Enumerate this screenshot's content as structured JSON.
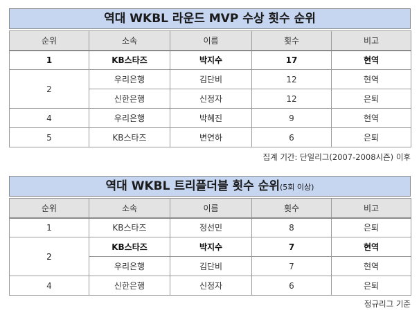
{
  "table1": {
    "title": "역대 WKBL 라운드 MVP 수상 횟수 순위",
    "headers": [
      "순위",
      "소속",
      "이름",
      "횟수",
      "비고"
    ],
    "rows": [
      {
        "rank": "1",
        "team": "KB스타즈",
        "name": "박지수",
        "count": "17",
        "note": "현역"
      },
      {
        "rank": "2",
        "team": "우리은행",
        "name": "김단비",
        "count": "12",
        "note": "현역"
      },
      {
        "rank": "",
        "team": "신한은행",
        "name": "신정자",
        "count": "12",
        "note": "은퇴"
      },
      {
        "rank": "4",
        "team": "우리은행",
        "name": "박혜진",
        "count": "9",
        "note": "현역"
      },
      {
        "rank": "5",
        "team": "KB스타즈",
        "name": "변연하",
        "count": "6",
        "note": "은퇴"
      }
    ],
    "footnote": "집계 기간: 단일리그(2007-2008시즌) 이후"
  },
  "table2": {
    "title": "역대 WKBL 트리플더블 횟수 순위",
    "title_suffix": "(5회 이상)",
    "headers": [
      "순위",
      "소속",
      "이름",
      "횟수",
      "비고"
    ],
    "rows": [
      {
        "rank": "1",
        "team": "KB스타즈",
        "name": "정선민",
        "count": "8",
        "note": "은퇴"
      },
      {
        "rank": "2",
        "team": "KB스타즈",
        "name": "박지수",
        "count": "7",
        "note": "현역"
      },
      {
        "rank": "",
        "team": "우리은행",
        "name": "김단비",
        "count": "7",
        "note": "현역"
      },
      {
        "rank": "4",
        "team": "신한은행",
        "name": "신정자",
        "count": "6",
        "note": "은퇴"
      }
    ],
    "footnote": "정규리그 기준"
  }
}
